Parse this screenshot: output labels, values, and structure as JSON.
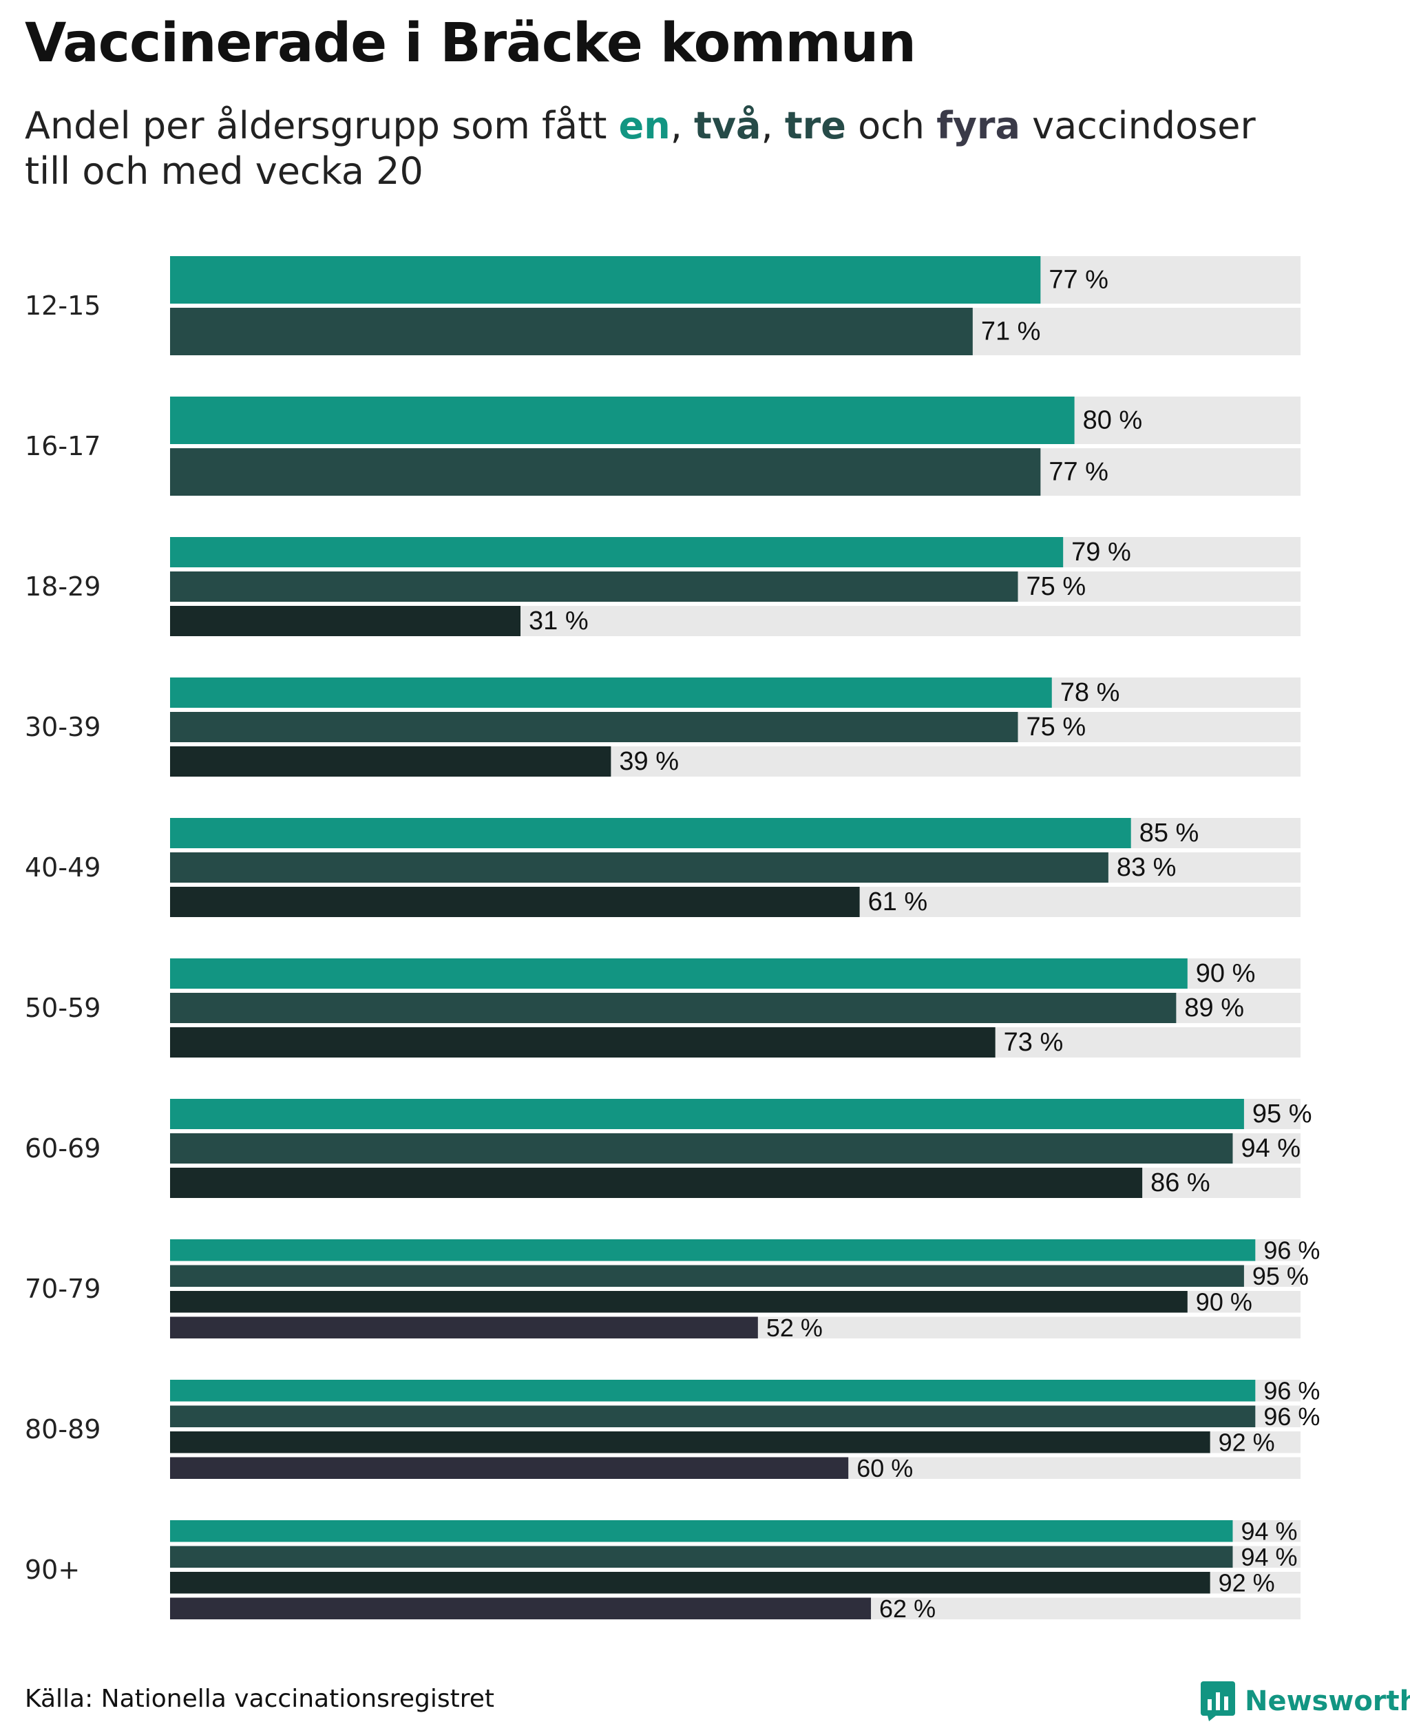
{
  "title": "Vaccinerade i Bräcke kommun",
  "subtitle": {
    "prefix": "Andel per åldersgrupp som fått ",
    "dose1": "en",
    "sep1": ", ",
    "dose2": "två",
    "sep2": ", ",
    "dose3": "tre",
    "sep3": " och ",
    "dose4": "fyra",
    "suffix_line1": " vaccindoser",
    "line2": "till och med vecka 20"
  },
  "colors": {
    "dose1": "#129582",
    "dose2": "#264b48",
    "dose3": "#182928",
    "dose4": "#2e2e3c",
    "track": "#e8e8e8",
    "subtitle_dose3": "#264b48",
    "subtitle_dose4": "#3a3a48"
  },
  "chart_data": {
    "type": "bar",
    "orientation": "horizontal",
    "unit": "%",
    "xlim": [
      0,
      100
    ],
    "categories": [
      "12-15",
      "16-17",
      "18-29",
      "30-39",
      "40-49",
      "50-59",
      "60-69",
      "70-79",
      "80-89",
      "90+"
    ],
    "series": [
      {
        "name": "en",
        "values": [
          77,
          80,
          79,
          78,
          85,
          90,
          95,
          96,
          96,
          94
        ]
      },
      {
        "name": "två",
        "values": [
          71,
          77,
          75,
          75,
          83,
          89,
          94,
          95,
          96,
          94
        ]
      },
      {
        "name": "tre",
        "values": [
          null,
          null,
          31,
          39,
          61,
          73,
          86,
          90,
          92,
          92
        ]
      },
      {
        "name": "fyra",
        "values": [
          null,
          null,
          null,
          null,
          null,
          null,
          null,
          52,
          60,
          62
        ]
      }
    ],
    "label_suffix": " %"
  },
  "source": "Källa: Nationella vaccinationsregistret",
  "logo": {
    "text": "Newsworthy",
    "icon": "bar-chart-icon"
  }
}
